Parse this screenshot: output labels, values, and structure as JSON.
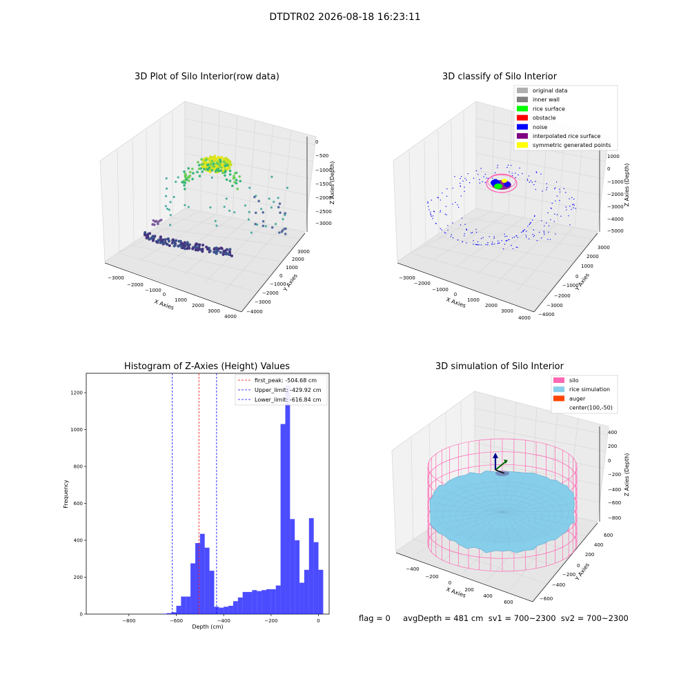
{
  "figure_title": "DTDTR02 2026-08-18 16:23:11",
  "status_line": "flag = 0     avgDepth = 481 cm  sv1 = 700~2300  sv2 = 700~2300",
  "panels": {
    "raw": {
      "title": "3D Plot of Silo Interior(row data)",
      "xlabel": "X Axies",
      "ylabel": "Y Axies",
      "zlabel": "Z Axies (Depth)",
      "xticks": [
        "−3000",
        "−2000",
        "−1000",
        "0",
        "1000",
        "2000",
        "3000",
        "4000"
      ],
      "yticks": [
        "−4000",
        "−3000",
        "−2000",
        "−1000",
        "0",
        "1000",
        "2000",
        "3000"
      ],
      "zticks": [
        "0",
        "−500",
        "−1000",
        "−1500",
        "−2000",
        "−2500",
        "−3000"
      ]
    },
    "classify": {
      "title": "3D classify of Silo Interior",
      "xlabel": "X Axies",
      "ylabel": "Y Axies",
      "zlabel": "Z Axies (Depth)",
      "xticks": [
        "−3000",
        "−2000",
        "−1000",
        "0",
        "1000",
        "2000",
        "3000",
        "4000"
      ],
      "yticks": [
        "−4000",
        "−3000",
        "−2000",
        "−1000",
        "0",
        "1000",
        "2000",
        "3000"
      ],
      "zticks": [
        "1000",
        "0",
        "−1000",
        "−2000",
        "−3000",
        "−4000",
        "−5000"
      ],
      "legend": [
        {
          "label": "original data",
          "color": "#b0b0b0"
        },
        {
          "label": "inner wall",
          "color": "#808080"
        },
        {
          "label": "rice surface",
          "color": "#00ff00"
        },
        {
          "label": "obstacle",
          "color": "#ff0000"
        },
        {
          "label": "noise",
          "color": "#0000ff"
        },
        {
          "label": "interpolated rice surface",
          "color": "#800080"
        },
        {
          "label": "symmetric generated points",
          "color": "#ffff00"
        }
      ]
    },
    "histogram": {
      "title": "Histogram of Z-Axies (Height) Values",
      "xlabel": "Depth (cm)",
      "ylabel": "Frequency",
      "legend": [
        {
          "label": "first_peak: -504.68 cm",
          "color": "#ff0000"
        },
        {
          "label": "Upper_limit: -429.92 cm",
          "color": "#0000ff"
        },
        {
          "label": "Lower_limit: -616.84 cm",
          "color": "#0000ff"
        }
      ]
    },
    "simulation": {
      "title": "3D simulation of Silo Interior",
      "xlabel": "X Axies",
      "ylabel": "Y Axies",
      "zlabel": "Z Axies (Depth)",
      "xticks": [
        "−400",
        "−200",
        "0",
        "200",
        "400",
        "600"
      ],
      "yticks": [
        "−600",
        "−400",
        "−200",
        "0",
        "200",
        "400",
        "600"
      ],
      "zticks": [
        "400",
        "200",
        "0",
        "−200",
        "−400",
        "−600",
        "−800"
      ],
      "legend": [
        {
          "label": "silo",
          "color": "#ff69b4"
        },
        {
          "label": "rice simulation",
          "color": "#87ceeb"
        },
        {
          "label": "auger",
          "color": "#ff4500"
        },
        {
          "label": "center(100,-50)",
          "color": ""
        }
      ]
    }
  },
  "chart_data": [
    {
      "type": "histogram",
      "title": "Histogram of Z-Axies (Height) Values",
      "xlabel": "Depth (cm)",
      "ylabel": "Frequency",
      "xlim": [
        -980,
        45
      ],
      "ylim": [
        0,
        1305
      ],
      "xticks": [
        -800,
        -600,
        -400,
        -200,
        0
      ],
      "yticks": [
        0,
        200,
        400,
        600,
        800,
        1000,
        1200
      ],
      "bar_color": "#0000ff",
      "bin_width": 20,
      "bins": [
        {
          "x0": -660,
          "count": 2
        },
        {
          "x0": -640,
          "count": 5
        },
        {
          "x0": -620,
          "count": 10
        },
        {
          "x0": -600,
          "count": 45
        },
        {
          "x0": -580,
          "count": 95
        },
        {
          "x0": -560,
          "count": 95
        },
        {
          "x0": -540,
          "count": 275
        },
        {
          "x0": -520,
          "count": 385
        },
        {
          "x0": -500,
          "count": 435
        },
        {
          "x0": -480,
          "count": 360
        },
        {
          "x0": -460,
          "count": 235
        },
        {
          "x0": -440,
          "count": 40
        },
        {
          "x0": -420,
          "count": 35
        },
        {
          "x0": -400,
          "count": 40
        },
        {
          "x0": -380,
          "count": 45
        },
        {
          "x0": -360,
          "count": 70
        },
        {
          "x0": -340,
          "count": 90
        },
        {
          "x0": -320,
          "count": 120
        },
        {
          "x0": -300,
          "count": 120
        },
        {
          "x0": -280,
          "count": 130
        },
        {
          "x0": -260,
          "count": 125
        },
        {
          "x0": -240,
          "count": 130
        },
        {
          "x0": -220,
          "count": 135
        },
        {
          "x0": -200,
          "count": 135
        },
        {
          "x0": -180,
          "count": 155
        },
        {
          "x0": -160,
          "count": 1030
        },
        {
          "x0": -140,
          "count": 1240
        },
        {
          "x0": -120,
          "count": 515
        },
        {
          "x0": -100,
          "count": 400
        },
        {
          "x0": -80,
          "count": 170
        },
        {
          "x0": -60,
          "count": 240
        },
        {
          "x0": -40,
          "count": 520
        },
        {
          "x0": -20,
          "count": 390
        },
        {
          "x0": 0,
          "count": 240
        }
      ],
      "vlines": [
        {
          "label": "first_peak: -504.68 cm",
          "x": -504.68,
          "color": "#ff0000"
        },
        {
          "label": "Upper_limit: -429.92 cm",
          "x": -429.92,
          "color": "#0000ff"
        },
        {
          "label": "Lower_limit: -616.84 cm",
          "x": -616.84,
          "color": "#0000ff"
        }
      ]
    }
  ]
}
